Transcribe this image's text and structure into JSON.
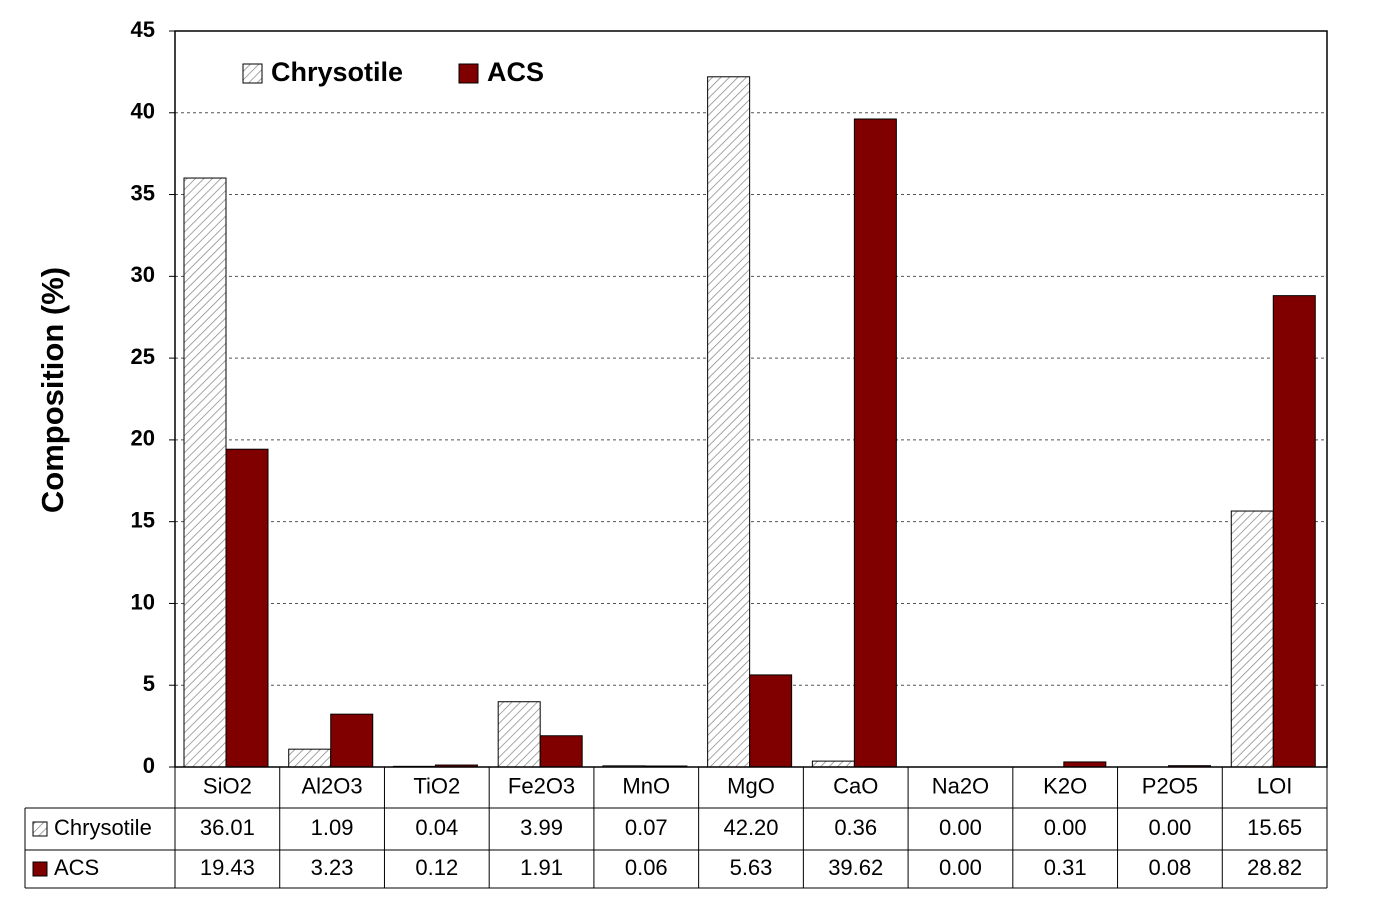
{
  "chart_data": {
    "type": "bar",
    "y_label": "Composition (%)",
    "categories": [
      "SiO2",
      "Al2O3",
      "TiO2",
      "Fe2O3",
      "MnO",
      "MgO",
      "CaO",
      "Na2O",
      "K2O",
      "P2O5",
      "LOI"
    ],
    "series": [
      {
        "name": "Chrysotile",
        "color": "#ffffff",
        "pattern": "hatch",
        "values": [
          36.01,
          1.09,
          0.04,
          3.99,
          0.07,
          42.2,
          0.36,
          0,
          0,
          0,
          15.65
        ],
        "value_labels": [
          "36.01",
          "1.09",
          "0.04",
          "3.99",
          "0.07",
          "42.20",
          "0.36",
          "0.00",
          "0.00",
          "0.00",
          "15.65"
        ]
      },
      {
        "name": "ACS",
        "color": "#800000",
        "values": [
          19.43,
          3.23,
          0.12,
          1.91,
          0.06,
          5.63,
          39.62,
          0,
          0.31,
          0.08,
          28.82
        ],
        "value_labels": [
          "19.43",
          "3.23",
          "0.12",
          "1.91",
          "0.06",
          "5.63",
          "39.62",
          "0.00",
          "0.31",
          "0.08",
          "28.82"
        ]
      }
    ],
    "ylim": [
      0,
      45
    ],
    "yticks": [
      0,
      5,
      10,
      15,
      20,
      25,
      30,
      35,
      40,
      45
    ],
    "grid": true,
    "legend": "top-left"
  }
}
